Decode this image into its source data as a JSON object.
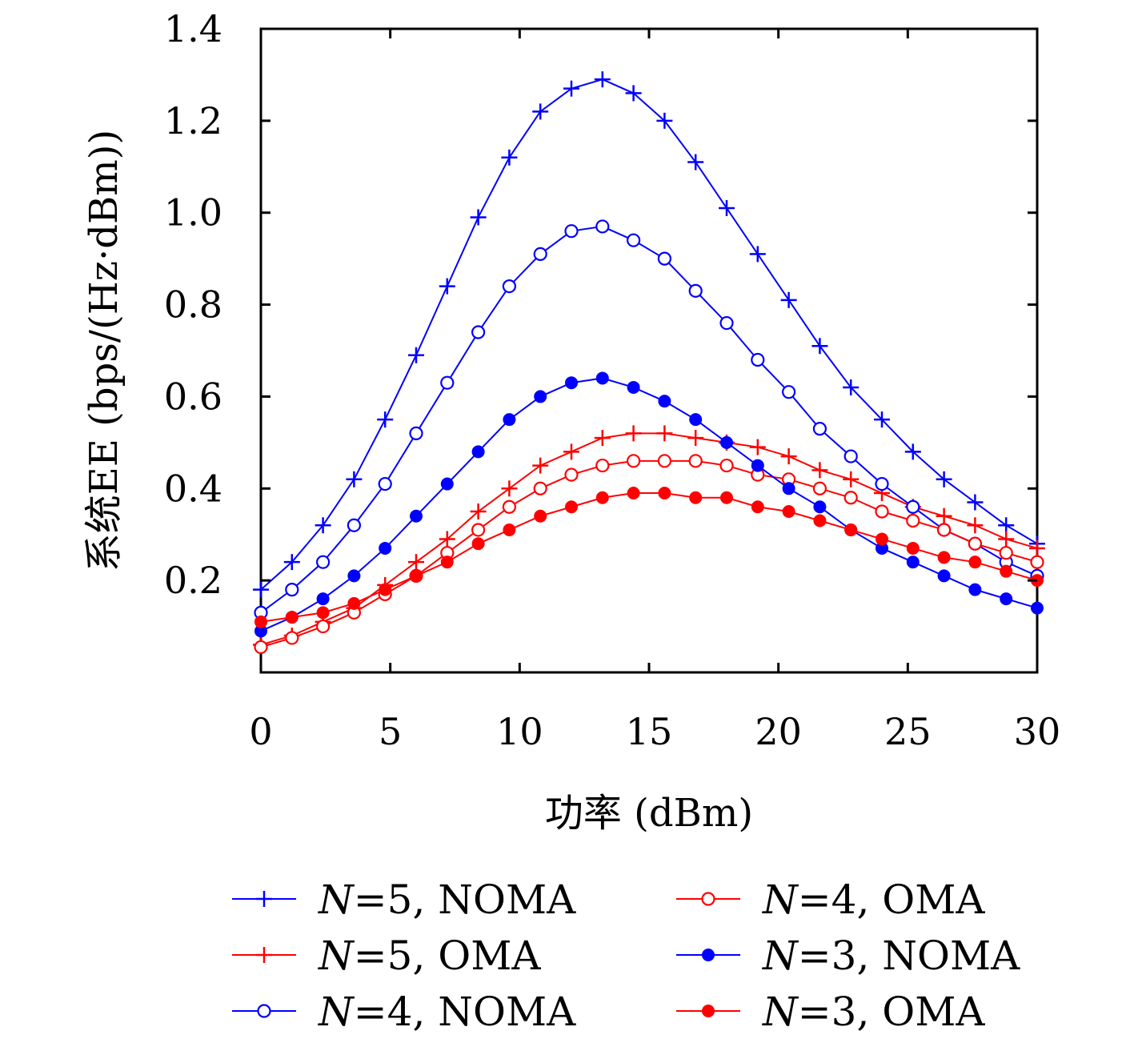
{
  "chart_data": {
    "type": "line",
    "xlabel": "功率 (dBm)",
    "ylabel": "系统EE (bps/(Hz·dBm))",
    "xlim": [
      0,
      30
    ],
    "ylim": [
      0.0,
      1.4
    ],
    "xticks": [
      0,
      5,
      10,
      15,
      20,
      25,
      30
    ],
    "xtick_labels": [
      "0",
      "5",
      "10",
      "15",
      "20",
      "25",
      "30"
    ],
    "yticks": [
      0.2,
      0.4,
      0.6,
      0.8,
      1.0,
      1.2,
      1.4
    ],
    "ytick_labels": [
      "0.2",
      "0.4",
      "0.6",
      "0.8",
      "1.0",
      "1.2",
      "1.4"
    ],
    "grid": false,
    "legend_position": "bottom",
    "x": [
      0,
      1.2,
      2.4,
      3.6,
      4.8,
      6.0,
      7.2,
      8.4,
      9.6,
      10.8,
      12.0,
      13.2,
      14.4,
      15.6,
      16.8,
      18.0,
      19.2,
      20.4,
      21.6,
      22.8,
      24.0,
      25.2,
      26.4,
      27.6,
      28.8,
      30.0
    ],
    "series": [
      {
        "name_prefix": "N",
        "name_suffix": "=5, NOMA",
        "color": "#0000ff",
        "marker": "plus",
        "values": [
          0.18,
          0.24,
          0.32,
          0.42,
          0.55,
          0.69,
          0.84,
          0.99,
          1.12,
          1.22,
          1.27,
          1.29,
          1.26,
          1.2,
          1.11,
          1.01,
          0.91,
          0.81,
          0.71,
          0.62,
          0.55,
          0.48,
          0.42,
          0.37,
          0.32,
          0.28
        ]
      },
      {
        "name_prefix": "N",
        "name_suffix": "=5, OMA",
        "color": "#ff0000",
        "marker": "plus",
        "values": [
          0.06,
          0.08,
          0.11,
          0.14,
          0.19,
          0.24,
          0.29,
          0.35,
          0.4,
          0.45,
          0.48,
          0.51,
          0.52,
          0.52,
          0.51,
          0.5,
          0.49,
          0.47,
          0.44,
          0.42,
          0.39,
          0.36,
          0.34,
          0.32,
          0.29,
          0.27
        ]
      },
      {
        "name_prefix": "N",
        "name_suffix": "=4, NOMA",
        "color": "#0000ff",
        "marker": "circle-open",
        "values": [
          0.13,
          0.18,
          0.24,
          0.32,
          0.41,
          0.52,
          0.63,
          0.74,
          0.84,
          0.91,
          0.96,
          0.97,
          0.94,
          0.9,
          0.83,
          0.76,
          0.68,
          0.61,
          0.53,
          0.47,
          0.41,
          0.36,
          0.31,
          0.28,
          0.24,
          0.21
        ]
      },
      {
        "name_prefix": "N",
        "name_suffix": "=4, OMA",
        "color": "#ff0000",
        "marker": "circle-open",
        "values": [
          0.055,
          0.075,
          0.1,
          0.13,
          0.17,
          0.21,
          0.26,
          0.31,
          0.36,
          0.4,
          0.43,
          0.45,
          0.46,
          0.46,
          0.46,
          0.45,
          0.43,
          0.42,
          0.4,
          0.38,
          0.35,
          0.33,
          0.31,
          0.28,
          0.26,
          0.24
        ]
      },
      {
        "name_prefix": "N",
        "name_suffix": "=3, NOMA",
        "color": "#0000ff",
        "marker": "circle-filled",
        "values": [
          0.09,
          0.12,
          0.16,
          0.21,
          0.27,
          0.34,
          0.41,
          0.48,
          0.55,
          0.6,
          0.63,
          0.64,
          0.62,
          0.59,
          0.55,
          0.5,
          0.45,
          0.4,
          0.36,
          0.31,
          0.27,
          0.24,
          0.21,
          0.18,
          0.16,
          0.14
        ]
      },
      {
        "name_prefix": "N",
        "name_suffix": "=3, OMA",
        "color": "#ff0000",
        "marker": "circle-filled",
        "values": [
          0.11,
          0.12,
          0.13,
          0.15,
          0.18,
          0.21,
          0.24,
          0.28,
          0.31,
          0.34,
          0.36,
          0.38,
          0.39,
          0.39,
          0.38,
          0.38,
          0.36,
          0.35,
          0.33,
          0.31,
          0.29,
          0.27,
          0.25,
          0.24,
          0.22,
          0.2
        ]
      }
    ],
    "legend_order": [
      0,
      3,
      1,
      4,
      2,
      5
    ]
  }
}
